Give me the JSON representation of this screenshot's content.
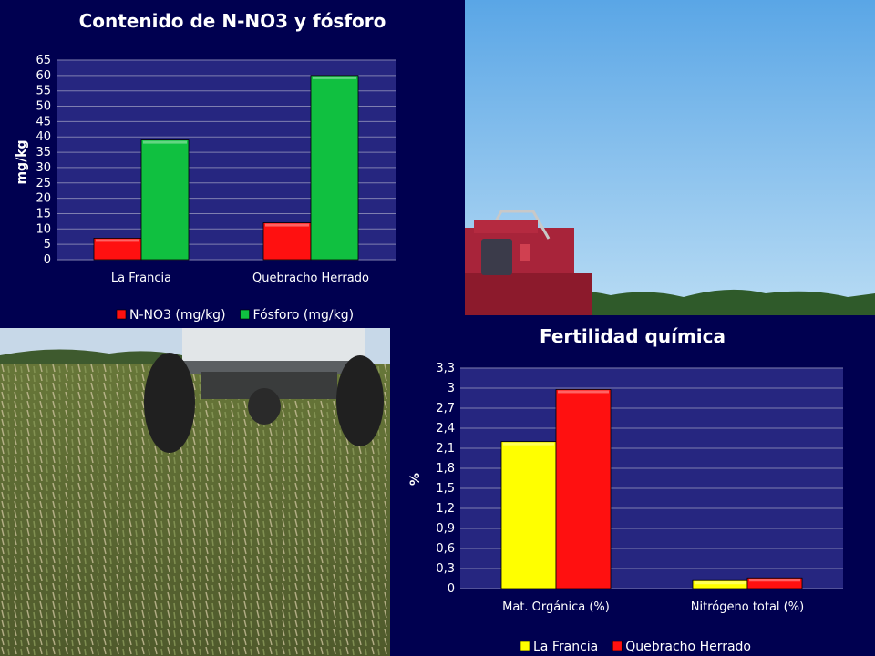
{
  "colors": {
    "background": "#000050",
    "plot_background": "#262680",
    "gridline": "#7f7fb0",
    "red": "#ff1010",
    "green": "#10c040",
    "yellow": "#ffff00"
  },
  "photos": {
    "top_right": {
      "description_icon": "harvester-photo-icon"
    },
    "bottom_left": {
      "description_icon": "tractor-trailer-field-photo-icon"
    }
  },
  "chart_data": [
    {
      "type": "bar",
      "title": "Contenido de N-NO3 y fósforo",
      "xlabel": "",
      "ylabel": "mg/kg",
      "categories": [
        "La Francia",
        "Quebracho Herrado"
      ],
      "series": [
        {
          "name": "N-NO3 (mg/kg)",
          "values": [
            7,
            12
          ],
          "color": "#ff1010"
        },
        {
          "name": "Fósforo (mg/kg)",
          "values": [
            39,
            60
          ],
          "color": "#10c040"
        }
      ],
      "ylim": [
        0,
        65
      ],
      "yticks": [
        "0",
        "5",
        "10",
        "15",
        "20",
        "25",
        "30",
        "35",
        "40",
        "45",
        "50",
        "55",
        "60",
        "65"
      ],
      "grid": true,
      "legend_position": "bottom"
    },
    {
      "type": "bar",
      "title": "Fertilidad química",
      "xlabel": "",
      "ylabel": "%",
      "categories": [
        "Mat. Orgánica (%)",
        "Nitrógeno total (%)"
      ],
      "series": [
        {
          "name": "La Francia",
          "values": [
            2.2,
            0.12
          ],
          "color": "#ffff00"
        },
        {
          "name": "Quebracho Herrado",
          "values": [
            2.98,
            0.16
          ],
          "color": "#ff1010"
        }
      ],
      "ylim": [
        0,
        3.3
      ],
      "yticks": [
        "0",
        "0,3",
        "0,6",
        "0,9",
        "1,2",
        "1,5",
        "1,8",
        "2,1",
        "2,4",
        "2,7",
        "3",
        "3,3"
      ],
      "grid": true,
      "legend_position": "bottom"
    }
  ]
}
